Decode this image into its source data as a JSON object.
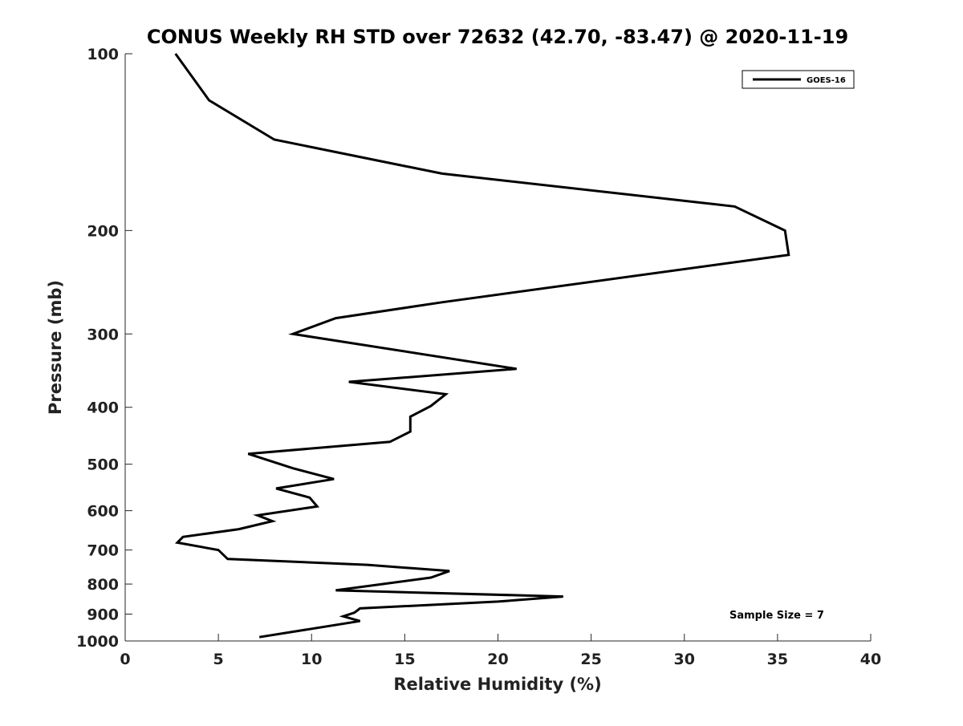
{
  "chart_data": {
    "type": "line",
    "title": "CONUS Weekly RH STD over 72632 (42.70, -83.47) @ 2020-11-19",
    "xlabel": "Relative Humidity (%)",
    "ylabel": "Pressure (mb)",
    "xlim": [
      0,
      40
    ],
    "ylim": [
      100,
      1000
    ],
    "y_scale": "log",
    "y_reversed": true,
    "xticks": [
      0,
      5,
      10,
      15,
      20,
      25,
      30,
      35,
      40
    ],
    "xtick_labels": [
      "0",
      "5",
      "10",
      "15",
      "20",
      "25",
      "30",
      "35",
      "40"
    ],
    "yticks": [
      100,
      200,
      300,
      400,
      500,
      600,
      700,
      800,
      900,
      1000
    ],
    "ytick_labels": [
      "100",
      "200",
      "300",
      "400",
      "500",
      "600",
      "700",
      "800",
      "900",
      "1000"
    ],
    "grid": false,
    "legend_position": "top-right",
    "annotation": "Sample Size = 7",
    "series": [
      {
        "name": "GOES-16",
        "color": "#000000",
        "points": [
          [
            2.7,
            100
          ],
          [
            4.5,
            120
          ],
          [
            8.0,
            140
          ],
          [
            17.0,
            160
          ],
          [
            32.7,
            182
          ],
          [
            35.4,
            200
          ],
          [
            35.6,
            220
          ],
          [
            17.0,
            265
          ],
          [
            11.3,
            282
          ],
          [
            9.0,
            300
          ],
          [
            21.0,
            344
          ],
          [
            12.0,
            362
          ],
          [
            17.2,
            380
          ],
          [
            16.4,
            398
          ],
          [
            15.3,
            415
          ],
          [
            15.3,
            440
          ],
          [
            14.2,
            458
          ],
          [
            6.6,
            480
          ],
          [
            9.0,
            508
          ],
          [
            11.2,
            530
          ],
          [
            8.1,
            550
          ],
          [
            9.9,
            570
          ],
          [
            10.3,
            590
          ],
          [
            7.1,
            611
          ],
          [
            7.9,
            625
          ],
          [
            6.1,
            645
          ],
          [
            3.1,
            665
          ],
          [
            2.8,
            680
          ],
          [
            5.0,
            700
          ],
          [
            5.5,
            725
          ],
          [
            13.0,
            742
          ],
          [
            17.4,
            760
          ],
          [
            16.4,
            780
          ],
          [
            11.3,
            820
          ],
          [
            23.5,
            840
          ],
          [
            20.0,
            857
          ],
          [
            12.6,
            880
          ],
          [
            12.3,
            895
          ],
          [
            11.7,
            908
          ],
          [
            12.6,
            925
          ],
          [
            7.2,
            985
          ]
        ]
      }
    ]
  }
}
